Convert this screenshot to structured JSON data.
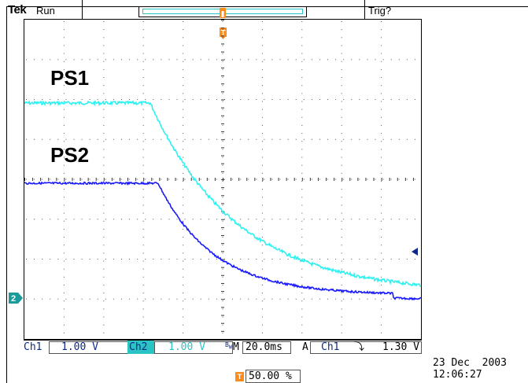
{
  "header": {
    "logo": "Tek",
    "acq_state": "Run",
    "trigger_state": "Trig?"
  },
  "traces": {
    "ps1_label": "PS1",
    "ps2_label": "PS2"
  },
  "channels": {
    "ch1": {
      "label": "Ch1",
      "scale": "1.00 V",
      "color": "#1a1aff"
    },
    "ch2": {
      "label": "Ch2",
      "scale": "1.00 V",
      "color": "#2ef2f2"
    }
  },
  "horizontal": {
    "label": "M",
    "scale": "20.0ms"
  },
  "trigger": {
    "mode_label": "A",
    "source": "Ch1",
    "slope_icon": "falling-edge-icon",
    "slope_symbol": "⤵",
    "level": "1.30 V"
  },
  "trigger_position": {
    "icon_letter": "T",
    "value": "50.00 %"
  },
  "timestamp": {
    "date": "23 Dec  2003",
    "time": "12:06:27"
  },
  "markers": {
    "ch2_ground_marker": "2",
    "trigger_marker_letter": "T"
  },
  "colors": {
    "ch1_trace": "#1a1aff",
    "ch2_trace": "#2ef2f2",
    "trigger_marker": "#ff8c1a",
    "grid": "#000000"
  }
}
